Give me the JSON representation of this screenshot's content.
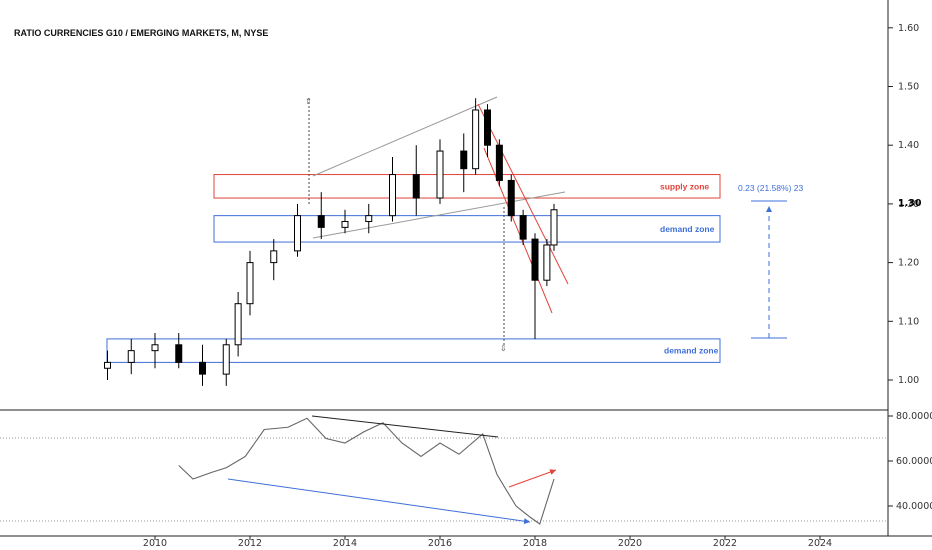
{
  "chart_data": [
    {
      "type": "candlestick",
      "title": "RATIO CURRENCIES G10  / EMERGING MARKETS, M, NYSE",
      "xlabel": "",
      "ylabel": "",
      "x_ticks": [
        "2010",
        "2012",
        "2014",
        "2016",
        "2018",
        "2020",
        "2022",
        "2024"
      ],
      "y_ticks": [
        "1.60",
        "1.50",
        "1.40",
        "1.30",
        "1.20",
        "1.10",
        "1.00"
      ],
      "ylim": [
        0.95,
        1.67
      ],
      "current_value_label": "1.30",
      "current_value": 1.3,
      "grid": false,
      "series": [
        {
          "t": 2009.0,
          "o": 1.02,
          "h": 1.05,
          "l": 1.0,
          "c": 1.03
        },
        {
          "t": 2009.5,
          "o": 1.03,
          "h": 1.07,
          "l": 1.01,
          "c": 1.05
        },
        {
          "t": 2010.0,
          "o": 1.05,
          "h": 1.08,
          "l": 1.02,
          "c": 1.06
        },
        {
          "t": 2010.5,
          "o": 1.06,
          "h": 1.08,
          "l": 1.02,
          "c": 1.03
        },
        {
          "t": 2011.0,
          "o": 1.03,
          "h": 1.06,
          "l": 0.99,
          "c": 1.01
        },
        {
          "t": 2011.5,
          "o": 1.01,
          "h": 1.07,
          "l": 0.99,
          "c": 1.06
        },
        {
          "t": 2011.75,
          "o": 1.06,
          "h": 1.15,
          "l": 1.04,
          "c": 1.13
        },
        {
          "t": 2012.0,
          "o": 1.13,
          "h": 1.22,
          "l": 1.11,
          "c": 1.2
        },
        {
          "t": 2012.5,
          "o": 1.2,
          "h": 1.24,
          "l": 1.17,
          "c": 1.22
        },
        {
          "t": 2013.0,
          "o": 1.22,
          "h": 1.3,
          "l": 1.21,
          "c": 1.28
        },
        {
          "t": 2013.5,
          "o": 1.28,
          "h": 1.32,
          "l": 1.24,
          "c": 1.26
        },
        {
          "t": 2014.0,
          "o": 1.26,
          "h": 1.29,
          "l": 1.25,
          "c": 1.27
        },
        {
          "t": 2014.5,
          "o": 1.27,
          "h": 1.3,
          "l": 1.25,
          "c": 1.28
        },
        {
          "t": 2015.0,
          "o": 1.28,
          "h": 1.38,
          "l": 1.27,
          "c": 1.35
        },
        {
          "t": 2015.5,
          "o": 1.35,
          "h": 1.4,
          "l": 1.28,
          "c": 1.31
        },
        {
          "t": 2016.0,
          "o": 1.31,
          "h": 1.41,
          "l": 1.3,
          "c": 1.39
        },
        {
          "t": 2016.5,
          "o": 1.39,
          "h": 1.42,
          "l": 1.32,
          "c": 1.36
        },
        {
          "t": 2016.75,
          "o": 1.36,
          "h": 1.48,
          "l": 1.35,
          "c": 1.46
        },
        {
          "t": 2017.0,
          "o": 1.46,
          "h": 1.47,
          "l": 1.38,
          "c": 1.4
        },
        {
          "t": 2017.25,
          "o": 1.4,
          "h": 1.41,
          "l": 1.33,
          "c": 1.34
        },
        {
          "t": 2017.5,
          "o": 1.34,
          "h": 1.35,
          "l": 1.27,
          "c": 1.28
        },
        {
          "t": 2017.75,
          "o": 1.28,
          "h": 1.29,
          "l": 1.23,
          "c": 1.24
        },
        {
          "t": 2018.0,
          "o": 1.24,
          "h": 1.25,
          "l": 1.07,
          "c": 1.17
        },
        {
          "t": 2018.25,
          "o": 1.17,
          "h": 1.24,
          "l": 1.16,
          "c": 1.23
        },
        {
          "t": 2018.4,
          "o": 1.23,
          "h": 1.3,
          "l": 1.22,
          "c": 1.29
        }
      ],
      "zones": [
        {
          "label": "supply zone",
          "from": 1.31,
          "to": 1.35,
          "color": "#e0443a"
        },
        {
          "label": "demand zone",
          "from": 1.235,
          "to": 1.28,
          "color": "#3e6fd8"
        },
        {
          "label": "demand zone",
          "from": 1.03,
          "to": 1.07,
          "color": "#3e6fd8"
        }
      ],
      "measure_label": "0.23 (21.58%) 23",
      "measure_from": 1.07,
      "measure_to": 1.3
    },
    {
      "type": "line",
      "y_ticks": [
        "80.0000",
        "60.0000",
        "40.0000"
      ],
      "ylim": [
        28,
        82
      ],
      "reference_lines": [
        70,
        30
      ],
      "grid": false,
      "series": [
        {
          "x": [
            2010.5,
            2010.8,
            2011.2,
            2011.5,
            2011.9,
            2012.3,
            2012.8,
            2013.2,
            2013.6,
            2014.0,
            2014.4,
            2014.8,
            2015.2,
            2015.6,
            2016.0,
            2016.4,
            2016.9,
            2017.2,
            2017.6,
            2017.9,
            2018.1,
            2018.4
          ],
          "y": [
            58,
            52,
            55,
            57,
            62,
            74,
            75,
            79,
            70,
            68,
            73,
            77,
            68,
            62,
            68,
            63,
            72,
            54,
            40,
            35,
            32,
            52
          ]
        }
      ]
    }
  ]
}
